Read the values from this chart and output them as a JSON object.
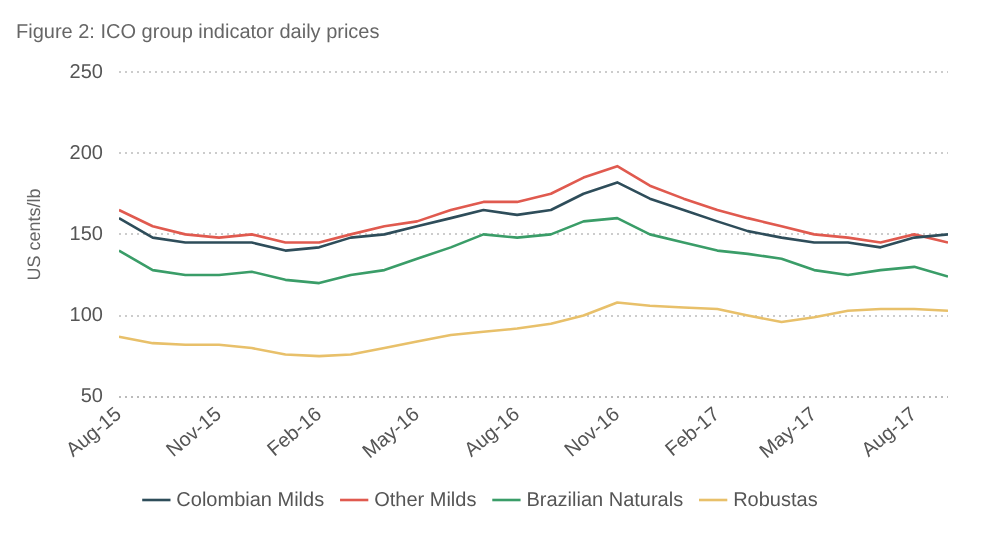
{
  "chart_data": {
    "type": "line",
    "title": "Figure 2: ICO group indicator daily prices",
    "ylabel": "US cents/lb",
    "x": [
      "2015-08",
      "2015-09",
      "2015-10",
      "2015-11",
      "2015-12",
      "2016-01",
      "2016-02",
      "2016-03",
      "2016-04",
      "2016-05",
      "2016-06",
      "2016-07",
      "2016-08",
      "2016-09",
      "2016-10",
      "2016-11",
      "2016-12",
      "2017-01",
      "2017-02",
      "2017-03",
      "2017-04",
      "2017-05",
      "2017-06",
      "2017-07",
      "2017-08",
      "2017-09"
    ],
    "series": [
      {
        "name": "Colombian Milds",
        "color": "#2e4d5a",
        "values": [
          160,
          148,
          145,
          145,
          145,
          140,
          142,
          148,
          150,
          155,
          160,
          165,
          162,
          165,
          175,
          182,
          172,
          165,
          158,
          152,
          148,
          145,
          145,
          142,
          148,
          150
        ]
      },
      {
        "name": "Other Milds",
        "color": "#e05a4f",
        "values": [
          165,
          155,
          150,
          148,
          150,
          145,
          145,
          150,
          155,
          158,
          165,
          170,
          170,
          175,
          185,
          192,
          180,
          172,
          165,
          160,
          155,
          150,
          148,
          145,
          150,
          145
        ]
      },
      {
        "name": "Brazilian Naturals",
        "color": "#3a9d68",
        "values": [
          140,
          128,
          125,
          125,
          127,
          122,
          120,
          125,
          128,
          135,
          142,
          150,
          148,
          150,
          158,
          160,
          150,
          145,
          140,
          138,
          135,
          128,
          125,
          128,
          130,
          124
        ]
      },
      {
        "name": "Robustas",
        "color": "#e8c06a",
        "values": [
          87,
          83,
          82,
          82,
          80,
          76,
          75,
          76,
          80,
          84,
          88,
          90,
          92,
          95,
          100,
          108,
          106,
          105,
          104,
          100,
          96,
          99,
          103,
          104,
          104,
          103
        ]
      }
    ],
    "xlim": [
      "2015-08",
      "2017-09"
    ],
    "xticks": [
      {
        "value": "2015-08",
        "label": "Aug-15"
      },
      {
        "value": "2015-11",
        "label": "Nov-15"
      },
      {
        "value": "2016-02",
        "label": "Feb-16"
      },
      {
        "value": "2016-05",
        "label": "May-16"
      },
      {
        "value": "2016-08",
        "label": "Aug-16"
      },
      {
        "value": "2016-11",
        "label": "Nov-16"
      },
      {
        "value": "2017-02",
        "label": "Feb-17"
      },
      {
        "value": "2017-05",
        "label": "May-17"
      },
      {
        "value": "2017-08",
        "label": "Aug-17"
      }
    ],
    "ylim": [
      50,
      250
    ],
    "yticks": [
      50,
      100,
      150,
      200,
      250
    ],
    "grid": "y",
    "legend": "bottom",
    "marker": "none",
    "line_style": "solid"
  }
}
